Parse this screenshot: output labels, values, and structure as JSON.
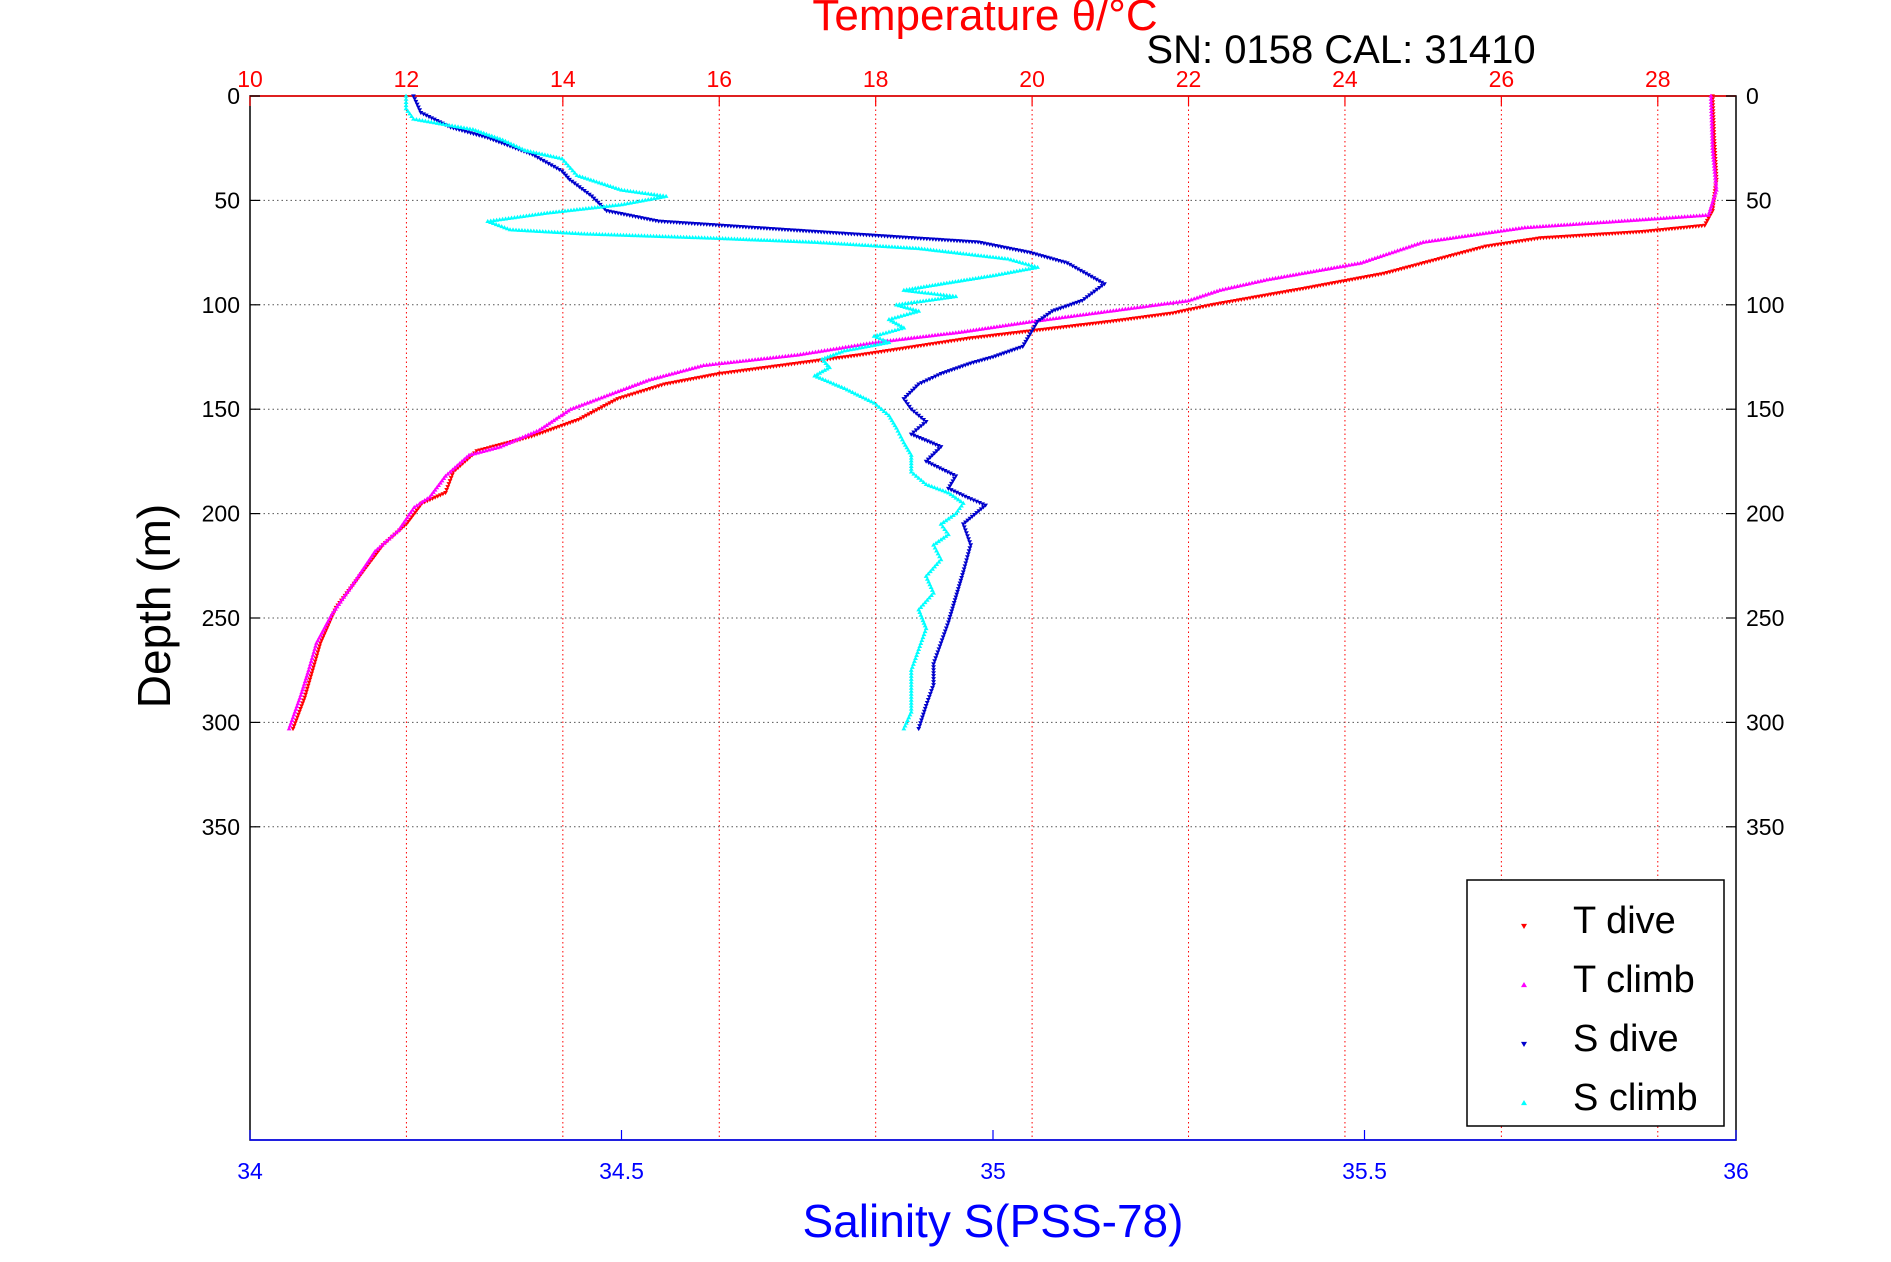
{
  "chart_data": {
    "type": "scatter",
    "title": "Temperature θ/°C",
    "subtitle": "SN: 0158  CAL: 31410",
    "ylabel": "Depth (m)",
    "xlabel": "Salinity S(PSS-78)",
    "y_axis": {
      "range": [
        0,
        500
      ],
      "inverted": true,
      "ticks": [
        0,
        50,
        100,
        150,
        200,
        250,
        300,
        350
      ],
      "tick_labels": [
        "0",
        "50",
        "100",
        "150",
        "200",
        "250",
        "300",
        "350"
      ]
    },
    "temperature_axis": {
      "position": "top",
      "range": [
        10,
        29
      ],
      "ticks": [
        10,
        12,
        14,
        16,
        18,
        20,
        22,
        24,
        26,
        28
      ],
      "tick_labels": [
        "10",
        "12",
        "14",
        "16",
        "18",
        "20",
        "22",
        "24",
        "26",
        "28"
      ]
    },
    "salinity_axis": {
      "position": "bottom",
      "range": [
        34,
        36
      ],
      "ticks": [
        34,
        34.5,
        35,
        35.5,
        36
      ],
      "tick_labels": [
        "34",
        "34.5",
        "35",
        "35.5",
        "36"
      ]
    },
    "grid": true,
    "legend": {
      "position": "bottom-right",
      "entries": [
        "T dive",
        "T climb",
        "S dive",
        "S climb"
      ]
    },
    "colors": {
      "t_dive": "#ff0000",
      "t_climb": "#ff00ff",
      "s_dive": "#0000cc",
      "s_climb": "#00ffff",
      "temperature_axis": "#ff0000",
      "salinity_axis": "#0000ff",
      "grid": "#555555"
    },
    "series": [
      {
        "name": "T dive",
        "axis": "temperature",
        "marker": "triangle-down",
        "points": [
          [
            28.7,
            0
          ],
          [
            28.72,
            20
          ],
          [
            28.75,
            40
          ],
          [
            28.7,
            55
          ],
          [
            28.6,
            62
          ],
          [
            27.8,
            65
          ],
          [
            26.5,
            68
          ],
          [
            25.8,
            72
          ],
          [
            25.2,
            78
          ],
          [
            24.5,
            85
          ],
          [
            23.5,
            92
          ],
          [
            22.3,
            100
          ],
          [
            21.8,
            104
          ],
          [
            21.0,
            108
          ],
          [
            20.1,
            112
          ],
          [
            19.2,
            116
          ],
          [
            18.5,
            120
          ],
          [
            17.8,
            124
          ],
          [
            17.0,
            128
          ],
          [
            16.0,
            133
          ],
          [
            15.3,
            138
          ],
          [
            14.7,
            145
          ],
          [
            14.2,
            155
          ],
          [
            13.6,
            163
          ],
          [
            12.9,
            170
          ],
          [
            12.6,
            180
          ],
          [
            12.5,
            190
          ],
          [
            12.2,
            195
          ],
          [
            12.0,
            205
          ],
          [
            11.7,
            215
          ],
          [
            11.4,
            230
          ],
          [
            11.1,
            245
          ],
          [
            10.9,
            262
          ],
          [
            10.8,
            275
          ],
          [
            10.7,
            288
          ],
          [
            10.55,
            303
          ]
        ]
      },
      {
        "name": "T climb",
        "axis": "temperature",
        "marker": "triangle-up",
        "points": [
          [
            28.68,
            0
          ],
          [
            28.7,
            25
          ],
          [
            28.75,
            45
          ],
          [
            28.65,
            57
          ],
          [
            27.5,
            60
          ],
          [
            26.3,
            63
          ],
          [
            25.0,
            70
          ],
          [
            24.2,
            80
          ],
          [
            23.0,
            88
          ],
          [
            22.4,
            93
          ],
          [
            22.0,
            98
          ],
          [
            21.0,
            103
          ],
          [
            20.0,
            108
          ],
          [
            19.1,
            113
          ],
          [
            18.0,
            118
          ],
          [
            17.0,
            124
          ],
          [
            15.8,
            129
          ],
          [
            15.1,
            136
          ],
          [
            14.6,
            143
          ],
          [
            14.1,
            150
          ],
          [
            13.7,
            160
          ],
          [
            13.2,
            168
          ],
          [
            12.8,
            172
          ],
          [
            12.5,
            182
          ],
          [
            12.3,
            192
          ],
          [
            12.1,
            197
          ],
          [
            11.9,
            208
          ],
          [
            11.6,
            218
          ],
          [
            11.35,
            232
          ],
          [
            11.05,
            248
          ],
          [
            10.85,
            262
          ],
          [
            10.75,
            275
          ],
          [
            10.65,
            287
          ],
          [
            10.5,
            303
          ]
        ]
      },
      {
        "name": "S dive",
        "axis": "salinity",
        "marker": "triangle-down",
        "points": [
          [
            34.22,
            0
          ],
          [
            34.23,
            8
          ],
          [
            34.27,
            15
          ],
          [
            34.32,
            20
          ],
          [
            34.38,
            28
          ],
          [
            34.42,
            36
          ],
          [
            34.43,
            40
          ],
          [
            34.46,
            48
          ],
          [
            34.48,
            55
          ],
          [
            34.55,
            60
          ],
          [
            34.72,
            64
          ],
          [
            34.85,
            67
          ],
          [
            34.98,
            70
          ],
          [
            35.05,
            75
          ],
          [
            35.1,
            80
          ],
          [
            35.15,
            90
          ],
          [
            35.12,
            98
          ],
          [
            35.08,
            103
          ],
          [
            35.06,
            108
          ],
          [
            35.05,
            114
          ],
          [
            35.04,
            120
          ],
          [
            35.0,
            125
          ],
          [
            34.97,
            128
          ],
          [
            34.93,
            133
          ],
          [
            34.9,
            138
          ],
          [
            34.88,
            145
          ],
          [
            34.89,
            150
          ],
          [
            34.91,
            156
          ],
          [
            34.89,
            162
          ],
          [
            34.93,
            168
          ],
          [
            34.91,
            175
          ],
          [
            34.95,
            182
          ],
          [
            34.94,
            188
          ],
          [
            34.97,
            193
          ],
          [
            34.99,
            196
          ],
          [
            34.96,
            205
          ],
          [
            34.97,
            215
          ],
          [
            34.96,
            228
          ],
          [
            34.95,
            240
          ],
          [
            34.94,
            252
          ],
          [
            34.93,
            262
          ],
          [
            34.92,
            272
          ],
          [
            34.92,
            282
          ],
          [
            34.91,
            292
          ],
          [
            34.9,
            303
          ]
        ]
      },
      {
        "name": "S climb",
        "axis": "salinity",
        "marker": "triangle-up",
        "points": [
          [
            34.21,
            0
          ],
          [
            34.21,
            6
          ],
          [
            34.22,
            11
          ],
          [
            34.3,
            16
          ],
          [
            34.34,
            21
          ],
          [
            34.37,
            26
          ],
          [
            34.42,
            30
          ],
          [
            34.44,
            38
          ],
          [
            34.5,
            45
          ],
          [
            34.56,
            48
          ],
          [
            34.5,
            52
          ],
          [
            34.4,
            56
          ],
          [
            34.32,
            60
          ],
          [
            34.35,
            64
          ],
          [
            34.45,
            66
          ],
          [
            34.62,
            68
          ],
          [
            34.76,
            70
          ],
          [
            34.9,
            73
          ],
          [
            35.02,
            78
          ],
          [
            35.06,
            82
          ],
          [
            35.0,
            86
          ],
          [
            34.93,
            90
          ],
          [
            34.88,
            93
          ],
          [
            34.95,
            96
          ],
          [
            34.87,
            100
          ],
          [
            34.9,
            103
          ],
          [
            34.86,
            107
          ],
          [
            34.88,
            111
          ],
          [
            34.84,
            115
          ],
          [
            34.86,
            118
          ],
          [
            34.8,
            122
          ],
          [
            34.77,
            126
          ],
          [
            34.78,
            130
          ],
          [
            34.76,
            134
          ],
          [
            34.8,
            140
          ],
          [
            34.84,
            147
          ],
          [
            34.86,
            153
          ],
          [
            34.87,
            159
          ],
          [
            34.88,
            166
          ],
          [
            34.89,
            172
          ],
          [
            34.89,
            180
          ],
          [
            34.91,
            186
          ],
          [
            34.94,
            190
          ],
          [
            34.96,
            195
          ],
          [
            34.95,
            200
          ],
          [
            34.93,
            205
          ],
          [
            34.94,
            210
          ],
          [
            34.92,
            215
          ],
          [
            34.93,
            222
          ],
          [
            34.91,
            230
          ],
          [
            34.92,
            238
          ],
          [
            34.9,
            246
          ],
          [
            34.91,
            255
          ],
          [
            34.9,
            265
          ],
          [
            34.89,
            275
          ],
          [
            34.89,
            285
          ],
          [
            34.89,
            295
          ],
          [
            34.88,
            303
          ]
        ]
      }
    ]
  }
}
